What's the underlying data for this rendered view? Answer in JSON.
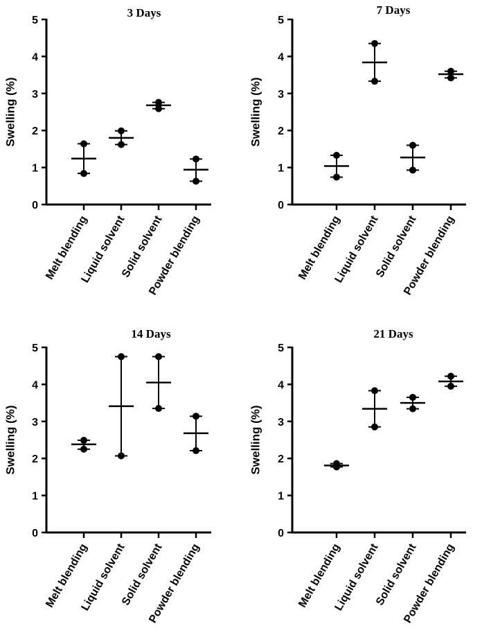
{
  "chart_data": [
    {
      "type": "scatter",
      "title": "3 Days",
      "ylabel": "Swelling (%)",
      "xlabel": "",
      "ylim": [
        0,
        5
      ],
      "yticks": [
        0,
        1,
        2,
        3,
        4,
        5
      ],
      "categories": [
        "Melt blending",
        "Liquid solvent",
        "Solid solvent",
        "Powder blending"
      ],
      "series": [
        {
          "name": "Melt blending",
          "points": [
            0.84,
            1.64
          ],
          "mean": 1.24
        },
        {
          "name": "Liquid solvent",
          "points": [
            1.62,
            1.99
          ],
          "mean": 1.8
        },
        {
          "name": "Solid solvent",
          "points": [
            2.59,
            2.76
          ],
          "mean": 2.68
        },
        {
          "name": "Powder blending",
          "points": [
            0.63,
            1.23
          ],
          "mean": 0.94
        }
      ]
    },
    {
      "type": "scatter",
      "title": "7 Days",
      "ylabel": "Swelling (%)",
      "xlabel": "",
      "ylim": [
        0,
        5
      ],
      "yticks": [
        0,
        1,
        2,
        3,
        4,
        5
      ],
      "categories": [
        "Melt blending",
        "Liquid solvent",
        "Solid solvent",
        "Powder blending"
      ],
      "series": [
        {
          "name": "Melt blending",
          "points": [
            0.74,
            1.33
          ],
          "mean": 1.04
        },
        {
          "name": "Liquid solvent",
          "points": [
            3.33,
            4.35
          ],
          "mean": 3.84
        },
        {
          "name": "Solid solvent",
          "points": [
            0.93,
            1.6
          ],
          "mean": 1.27
        },
        {
          "name": "Powder blending",
          "points": [
            3.42,
            3.6
          ],
          "mean": 3.52
        }
      ]
    },
    {
      "type": "scatter",
      "title": "14 Days",
      "ylabel": "Swelling (%)",
      "xlabel": "",
      "ylim": [
        0,
        5
      ],
      "yticks": [
        0,
        1,
        2,
        3,
        4,
        5
      ],
      "categories": [
        "Melt blending",
        "Liquid solvent",
        "Solid solvent",
        "Powder blending"
      ],
      "series": [
        {
          "name": "Melt blending",
          "points": [
            2.25,
            2.49
          ],
          "mean": 2.38
        },
        {
          "name": "Liquid solvent",
          "points": [
            2.07,
            4.75
          ],
          "mean": 3.41
        },
        {
          "name": "Solid solvent",
          "points": [
            3.35,
            4.75
          ],
          "mean": 4.05
        },
        {
          "name": "Powder blending",
          "points": [
            2.21,
            3.14
          ],
          "mean": 2.68
        }
      ]
    },
    {
      "type": "scatter",
      "title": "21 Days",
      "ylabel": "Swelling (%)",
      "xlabel": "",
      "ylim": [
        0,
        5
      ],
      "yticks": [
        0,
        1,
        2,
        3,
        4,
        5
      ],
      "categories": [
        "Melt blending",
        "Liquid solvent",
        "Solid solvent",
        "Powder blending"
      ],
      "series": [
        {
          "name": "Melt blending",
          "points": [
            1.77,
            1.86
          ],
          "mean": 1.81
        },
        {
          "name": "Liquid solvent",
          "points": [
            2.85,
            3.83
          ],
          "mean": 3.34
        },
        {
          "name": "Solid solvent",
          "points": [
            3.34,
            3.65
          ],
          "mean": 3.5
        },
        {
          "name": "Powder blending",
          "points": [
            3.95,
            4.22
          ],
          "mean": 4.08
        }
      ]
    }
  ]
}
